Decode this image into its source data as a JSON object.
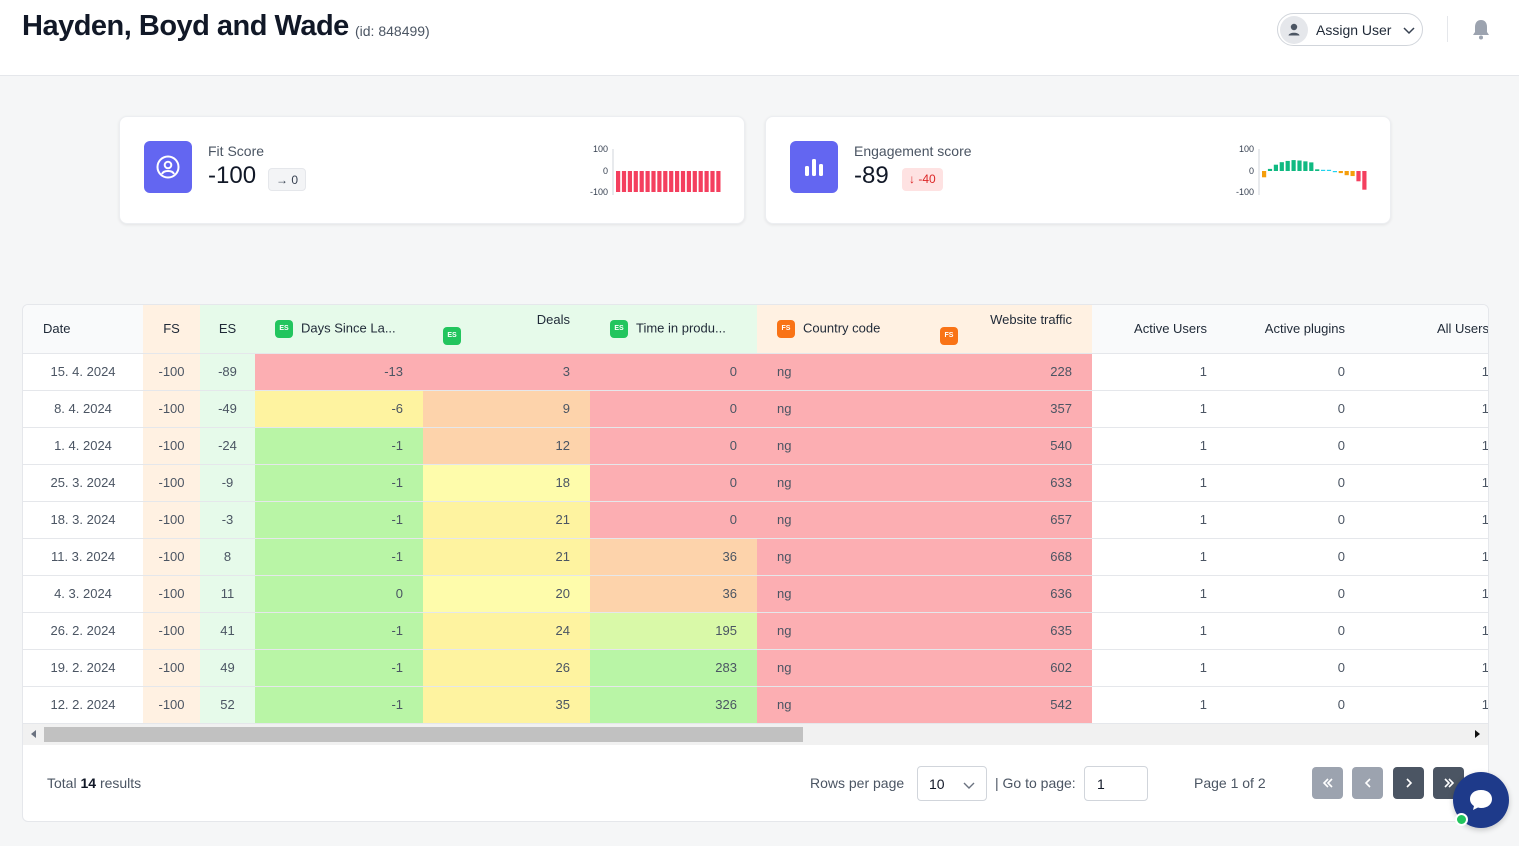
{
  "header": {
    "title": "Hayden, Boyd and Wade",
    "id_label": "(id: 848499)",
    "assign_label": "Assign User",
    "icons": [
      "user-icon",
      "chevron-down-icon",
      "bell-icon"
    ]
  },
  "cards": {
    "fit": {
      "label": "Fit Score",
      "value": "-100",
      "delta": "0",
      "delta_arrow": "→",
      "icon": "user-circle-icon",
      "spark_ticks": [
        "100",
        "0",
        "-100"
      ],
      "spark_values": [
        -100,
        -100,
        -100,
        -100,
        -100,
        -100,
        -100,
        -100,
        -100,
        -100,
        -100,
        -100,
        -100,
        -100,
        -100,
        -100,
        -100,
        -100
      ]
    },
    "engagement": {
      "label": "Engagement score",
      "value": "-89",
      "delta": "-40",
      "delta_arrow": "↓",
      "icon": "bar-chart-icon",
      "spark_ticks": [
        "100",
        "0",
        "-100"
      ],
      "spark_values": [
        -30,
        10,
        30,
        42,
        48,
        52,
        50,
        46,
        41,
        8,
        4,
        0,
        -4,
        -10,
        -20,
        -24,
        -49,
        -89
      ]
    }
  },
  "colors": {
    "accent": "#6366f1",
    "red": "#fcaeb2",
    "orange": "#fdd3ab",
    "yellow": "#fef3a0",
    "pale_yellow": "#fefcab",
    "green": "#b9f5a6",
    "light_green": "#d9f9a8",
    "header_fs": "#fff1e2",
    "header_es": "#e6faea"
  },
  "table": {
    "columns": [
      {
        "label": "Date",
        "tag": ""
      },
      {
        "label": "FS",
        "tag": ""
      },
      {
        "label": "ES",
        "tag": ""
      },
      {
        "label": "Days Since La...",
        "tag": "ES"
      },
      {
        "label": "Deals",
        "tag": "ES"
      },
      {
        "label": "Time in produ...",
        "tag": "ES"
      },
      {
        "label": "Country code",
        "tag": "FS"
      },
      {
        "label": "Website traffic",
        "tag": "FS"
      },
      {
        "label": "Active Users",
        "tag": ""
      },
      {
        "label": "Active plugins",
        "tag": ""
      },
      {
        "label": "All Users",
        "tag": ""
      }
    ],
    "rows": [
      {
        "date": "15. 4. 2024",
        "fs": "-100",
        "es": "-89",
        "days": "-13",
        "deals": "3",
        "time": "0",
        "country": "ng",
        "traffic": "228",
        "active_users": "1",
        "plugins": "0",
        "all_users": "1"
      },
      {
        "date": "8. 4. 2024",
        "fs": "-100",
        "es": "-49",
        "days": "-6",
        "deals": "9",
        "time": "0",
        "country": "ng",
        "traffic": "357",
        "active_users": "1",
        "plugins": "0",
        "all_users": "1"
      },
      {
        "date": "1. 4. 2024",
        "fs": "-100",
        "es": "-24",
        "days": "-1",
        "deals": "12",
        "time": "0",
        "country": "ng",
        "traffic": "540",
        "active_users": "1",
        "plugins": "0",
        "all_users": "1"
      },
      {
        "date": "25. 3. 2024",
        "fs": "-100",
        "es": "-9",
        "days": "-1",
        "deals": "18",
        "time": "0",
        "country": "ng",
        "traffic": "633",
        "active_users": "1",
        "plugins": "0",
        "all_users": "1"
      },
      {
        "date": "18. 3. 2024",
        "fs": "-100",
        "es": "-3",
        "days": "-1",
        "deals": "21",
        "time": "0",
        "country": "ng",
        "traffic": "657",
        "active_users": "1",
        "plugins": "0",
        "all_users": "1"
      },
      {
        "date": "11. 3. 2024",
        "fs": "-100",
        "es": "8",
        "days": "-1",
        "deals": "21",
        "time": "36",
        "country": "ng",
        "traffic": "668",
        "active_users": "1",
        "plugins": "0",
        "all_users": "1"
      },
      {
        "date": "4. 3. 2024",
        "fs": "-100",
        "es": "11",
        "days": "0",
        "deals": "20",
        "time": "36",
        "country": "ng",
        "traffic": "636",
        "active_users": "1",
        "plugins": "0",
        "all_users": "1"
      },
      {
        "date": "26. 2. 2024",
        "fs": "-100",
        "es": "41",
        "days": "-1",
        "deals": "24",
        "time": "195",
        "country": "ng",
        "traffic": "635",
        "active_users": "1",
        "plugins": "0",
        "all_users": "1"
      },
      {
        "date": "19. 2. 2024",
        "fs": "-100",
        "es": "49",
        "days": "-1",
        "deals": "26",
        "time": "283",
        "country": "ng",
        "traffic": "602",
        "active_users": "1",
        "plugins": "0",
        "all_users": "1"
      },
      {
        "date": "12. 2. 2024",
        "fs": "-100",
        "es": "52",
        "days": "-1",
        "deals": "35",
        "time": "326",
        "country": "ng",
        "traffic": "542",
        "active_users": "1",
        "plugins": "0",
        "all_users": "1"
      }
    ],
    "cell_colors": {
      "days": [
        "red",
        "yellow",
        "green",
        "green",
        "green",
        "green",
        "green",
        "green",
        "green",
        "green"
      ],
      "deals": [
        "red",
        "orange",
        "orange",
        "pale_yellow",
        "yellow",
        "yellow",
        "pale_yellow",
        "yellow",
        "yellow",
        "yellow"
      ],
      "time": [
        "red",
        "red",
        "red",
        "red",
        "red",
        "orange",
        "orange",
        "light_green",
        "green",
        "green"
      ],
      "country": [
        "red",
        "red",
        "red",
        "red",
        "red",
        "red",
        "red",
        "red",
        "red",
        "red"
      ],
      "traffic": [
        "red",
        "red",
        "red",
        "red",
        "red",
        "red",
        "red",
        "red",
        "red",
        "red"
      ]
    }
  },
  "footer": {
    "total_prefix": "Total",
    "total_count": "14",
    "total_suffix": "results",
    "rows_per_page_label": "Rows per page",
    "rows_per_page_value": "10",
    "goto_label": "| Go to page:",
    "goto_value": "1",
    "page_info": "Page 1 of 2"
  }
}
